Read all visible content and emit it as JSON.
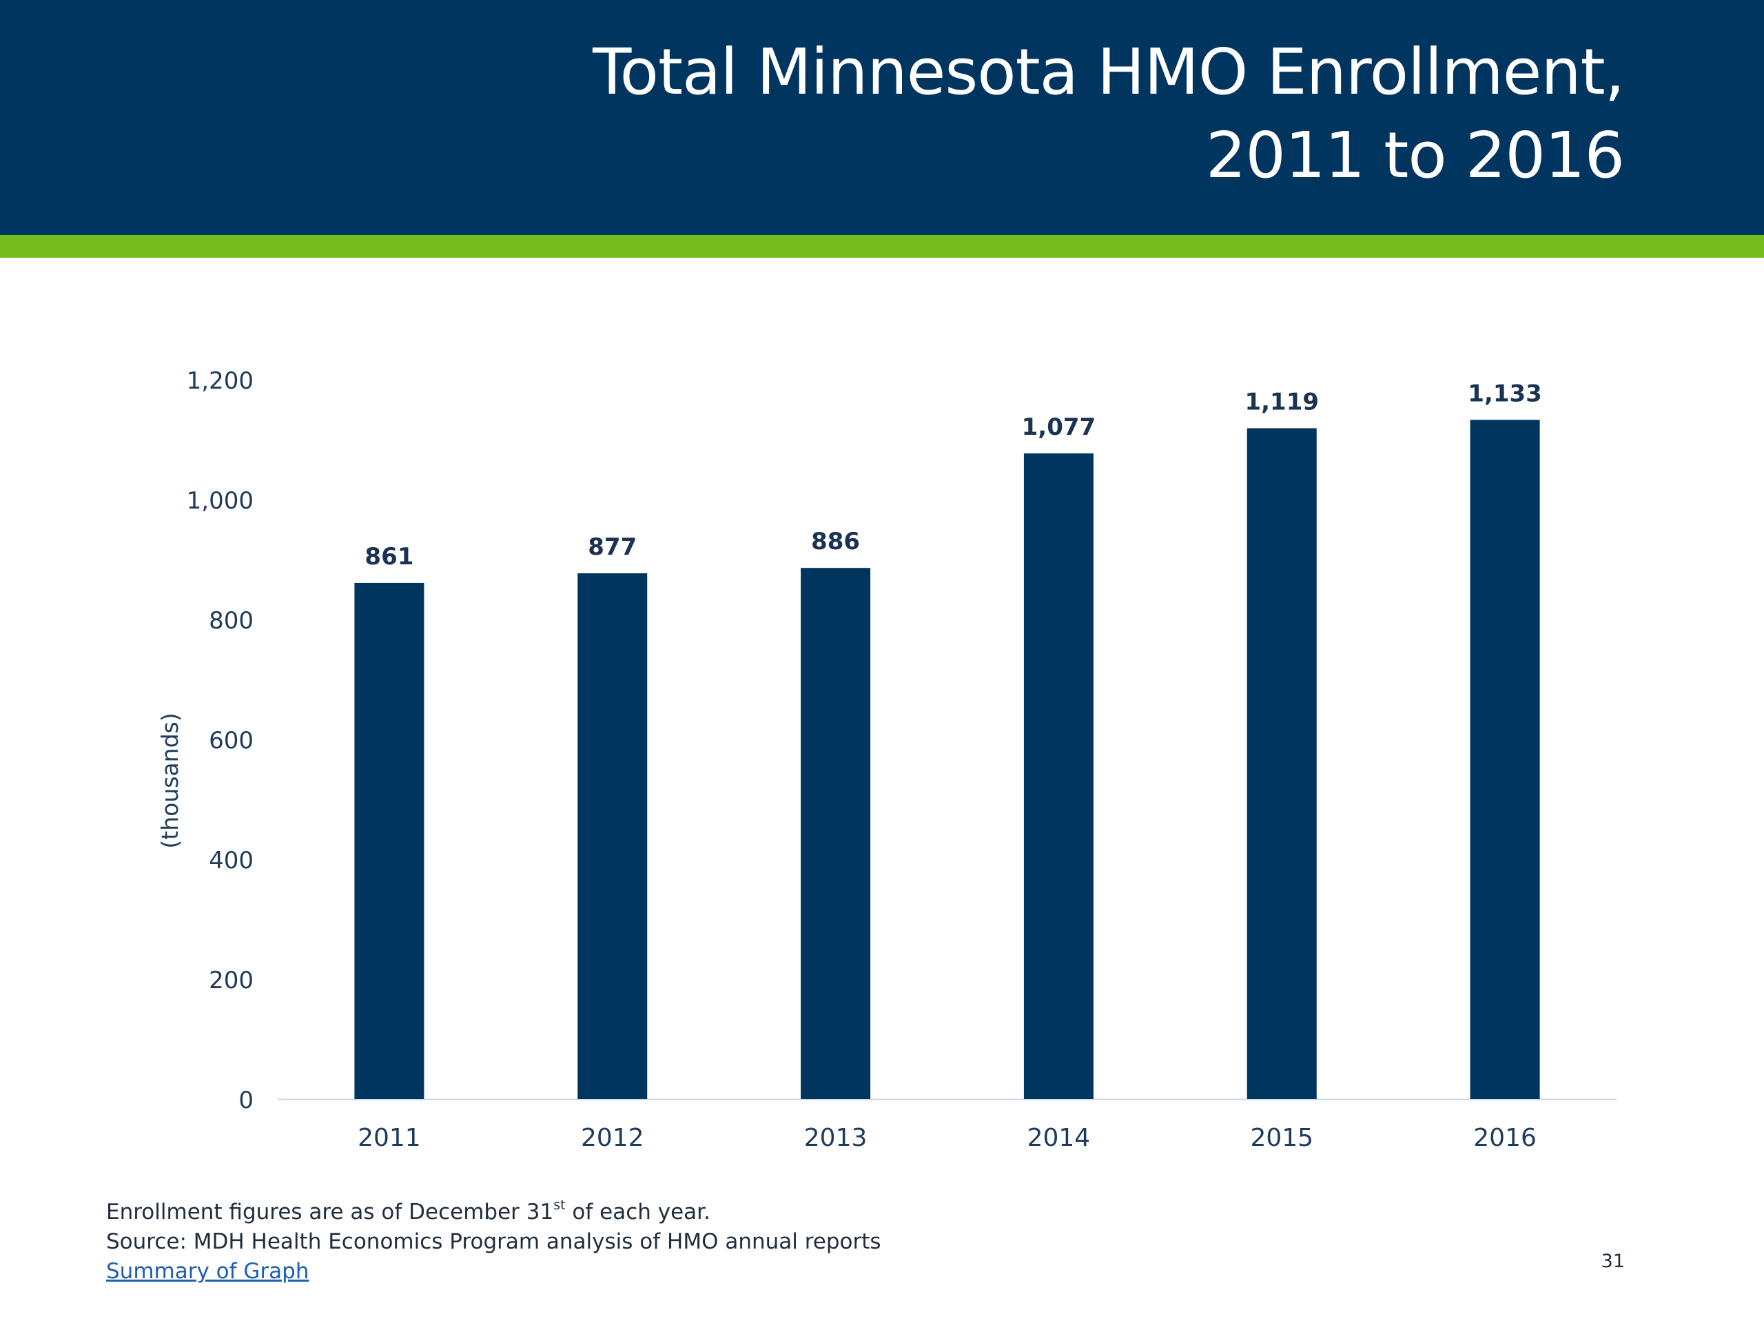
{
  "slide": {
    "title_line1": "Total Minnesota HMO Enrollment,",
    "title_line2": "2011 to 2016",
    "page_number": "31"
  },
  "colors": {
    "header_bg": "#003560",
    "accent": "#77bc1f",
    "bar": "#003560",
    "axis_text": "#1f3b5c",
    "link": "#1f5fb3"
  },
  "chart_data": {
    "type": "bar",
    "title": "",
    "categories": [
      "2011",
      "2012",
      "2013",
      "2014",
      "2015",
      "2016"
    ],
    "values": [
      861,
      877,
      886,
      1077,
      1119,
      1133
    ],
    "data_labels": [
      "861",
      "877",
      "886",
      "1,077",
      "1,119",
      "1,133"
    ],
    "xlabel": "",
    "ylabel": "(thousands)",
    "ylim": [
      0,
      1200
    ],
    "yticks": [
      0,
      200,
      400,
      600,
      800,
      1000,
      1200
    ],
    "ytick_labels": [
      "0",
      "200",
      "400",
      "600",
      "800",
      "1,000",
      "1,200"
    ],
    "grid": false,
    "legend": "none"
  },
  "footer": {
    "note_before_sup": "Enrollment figures are as of December 31",
    "note_sup": "st",
    "note_after_sup": " of each year.",
    "source": "Source: MDH Health Economics Program analysis of HMO annual reports",
    "link_text": "Summary of Graph"
  }
}
